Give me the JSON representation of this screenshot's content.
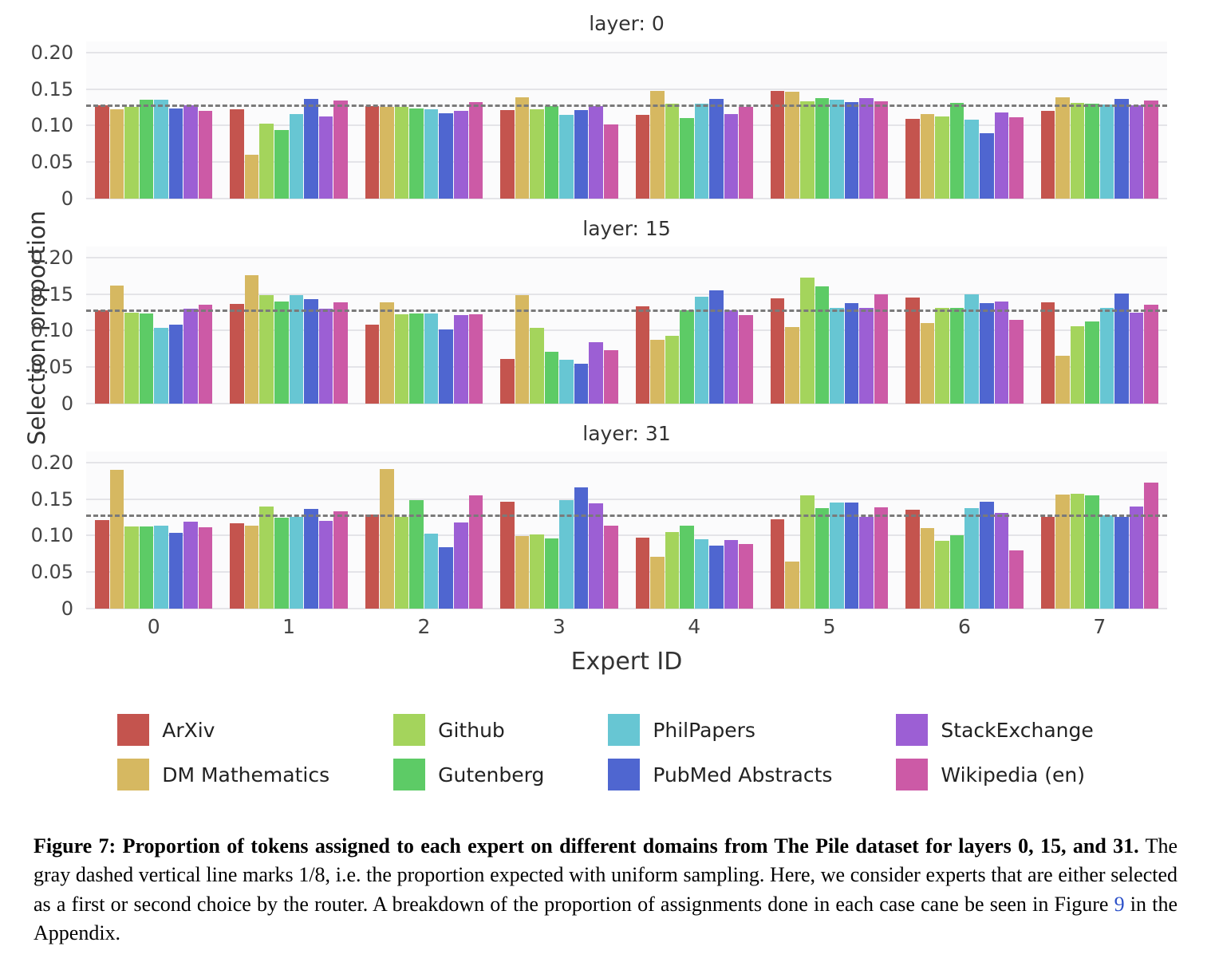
{
  "chart_data": {
    "type": "bar",
    "categories": [
      "0",
      "1",
      "2",
      "3",
      "4",
      "5",
      "6",
      "7"
    ],
    "xlabel": "Expert ID",
    "ylabel": "Selection proportion",
    "ylim": [
      0,
      0.215
    ],
    "yticks": [
      0,
      0.05,
      0.1,
      0.15,
      0.2
    ],
    "ytick_labels": [
      "0",
      "0.05",
      "0.10",
      "0.15",
      "0.20"
    ],
    "grid": true,
    "legend_position": "bottom",
    "reference_line": {
      "value": 0.125,
      "style": "dashed",
      "color": "#7a7a7a"
    },
    "series_colors": {
      "ArXiv": "#c4544e",
      "DM Mathematics": "#d6b861",
      "Github": "#a4d45c",
      "Gutenberg": "#5dcb66",
      "PhilPapers": "#67c6d3",
      "PubMed Abstracts": "#4f66d0",
      "StackExchange": "#9c5fd4",
      "Wikipedia (en)": "#cc5aa6"
    },
    "panels": [
      {
        "title": "layer: 0",
        "series": [
          {
            "name": "ArXiv",
            "values": [
              0.128,
              0.122,
              0.127,
              0.121,
              0.115,
              0.147,
              0.109,
              0.12
            ]
          },
          {
            "name": "DM Mathematics",
            "values": [
              0.122,
              0.06,
              0.126,
              0.139,
              0.147,
              0.146,
              0.116,
              0.139
            ]
          },
          {
            "name": "Github",
            "values": [
              0.125,
              0.103,
              0.126,
              0.122,
              0.13,
              0.133,
              0.112,
              0.131
            ]
          },
          {
            "name": "Gutenberg",
            "values": [
              0.135,
              0.094,
              0.123,
              0.127,
              0.11,
              0.138,
              0.131,
              0.13
            ]
          },
          {
            "name": "PhilPapers",
            "values": [
              0.135,
              0.116,
              0.122,
              0.115,
              0.13,
              0.135,
              0.108,
              0.129
            ]
          },
          {
            "name": "PubMed Abstracts",
            "values": [
              0.123,
              0.136,
              0.117,
              0.121,
              0.136,
              0.132,
              0.089,
              0.136
            ]
          },
          {
            "name": "StackExchange",
            "values": [
              0.128,
              0.112,
              0.12,
              0.127,
              0.116,
              0.138,
              0.118,
              0.128
            ]
          },
          {
            "name": "Wikipedia (en)",
            "values": [
              0.12,
              0.134,
              0.132,
              0.102,
              0.126,
              0.133,
              0.111,
              0.134
            ]
          }
        ]
      },
      {
        "title": "layer: 15",
        "series": [
          {
            "name": "ArXiv",
            "values": [
              0.128,
              0.136,
              0.108,
              0.061,
              0.133,
              0.144,
              0.145,
              0.139
            ]
          },
          {
            "name": "DM Mathematics",
            "values": [
              0.161,
              0.176,
              0.139,
              0.148,
              0.087,
              0.105,
              0.11,
              0.065
            ]
          },
          {
            "name": "Github",
            "values": [
              0.124,
              0.148,
              0.122,
              0.104,
              0.093,
              0.172,
              0.131,
              0.106
            ]
          },
          {
            "name": "Gutenberg",
            "values": [
              0.123,
              0.14,
              0.123,
              0.071,
              0.128,
              0.16,
              0.131,
              0.112
            ]
          },
          {
            "name": "PhilPapers",
            "values": [
              0.104,
              0.148,
              0.123,
              0.06,
              0.146,
              0.131,
              0.149,
              0.131
            ]
          },
          {
            "name": "PubMed Abstracts",
            "values": [
              0.108,
              0.143,
              0.101,
              0.055,
              0.155,
              0.138,
              0.138,
              0.151
            ]
          },
          {
            "name": "StackExchange",
            "values": [
              0.13,
              0.13,
              0.121,
              0.084,
              0.128,
              0.131,
              0.14,
              0.124
            ]
          },
          {
            "name": "Wikipedia (en)",
            "values": [
              0.135,
              0.139,
              0.122,
              0.073,
              0.121,
              0.15,
              0.115,
              0.135
            ]
          }
        ]
      },
      {
        "title": "layer: 31",
        "series": [
          {
            "name": "ArXiv",
            "values": [
              0.121,
              0.117,
              0.129,
              0.146,
              0.097,
              0.122,
              0.135,
              0.125
            ]
          },
          {
            "name": "DM Mathematics",
            "values": [
              0.19,
              0.113,
              0.191,
              0.099,
              0.071,
              0.064,
              0.11,
              0.156
            ]
          },
          {
            "name": "Github",
            "values": [
              0.112,
              0.14,
              0.126,
              0.102,
              0.105,
              0.155,
              0.093,
              0.157
            ]
          },
          {
            "name": "Gutenberg",
            "values": [
              0.112,
              0.124,
              0.148,
              0.096,
              0.114,
              0.138,
              0.1,
              0.155
            ]
          },
          {
            "name": "PhilPapers",
            "values": [
              0.113,
              0.125,
              0.103,
              0.148,
              0.095,
              0.145,
              0.137,
              0.128
            ]
          },
          {
            "name": "PubMed Abstracts",
            "values": [
              0.104,
              0.136,
              0.084,
              0.166,
              0.086,
              0.145,
              0.146,
              0.126
            ]
          },
          {
            "name": "StackExchange",
            "values": [
              0.119,
              0.12,
              0.118,
              0.144,
              0.094,
              0.125,
              0.131,
              0.14
            ]
          },
          {
            "name": "Wikipedia (en)",
            "values": [
              0.111,
              0.133,
              0.155,
              0.114,
              0.088,
              0.139,
              0.08,
              0.172
            ]
          }
        ]
      }
    ]
  },
  "legend": {
    "items": [
      {
        "label": "ArXiv",
        "color": "#c4544e"
      },
      {
        "label": "DM Mathematics",
        "color": "#d6b861"
      },
      {
        "label": "Github",
        "color": "#a4d45c"
      },
      {
        "label": "Gutenberg",
        "color": "#5dcb66"
      },
      {
        "label": "PhilPapers",
        "color": "#67c6d3"
      },
      {
        "label": "PubMed Abstracts",
        "color": "#4f66d0"
      },
      {
        "label": "StackExchange",
        "color": "#9c5fd4"
      },
      {
        "label": "Wikipedia (en)",
        "color": "#cc5aa6"
      }
    ]
  },
  "caption": {
    "bold": "Figure 7: Proportion of tokens assigned to each expert on different domains from The Pile dataset for layers 0, 15, and 31.",
    "text_before_link": " The gray dashed vertical line marks 1/8, i.e. the proportion expected with uniform sampling. Here, we consider experts that are either selected as a first or second choice by the router. A breakdown of the proportion of assignments done in each case cane be seen in Figure ",
    "link_text": "9",
    "text_after_link": " in the Appendix.",
    "link_color": "#2b50c8"
  }
}
